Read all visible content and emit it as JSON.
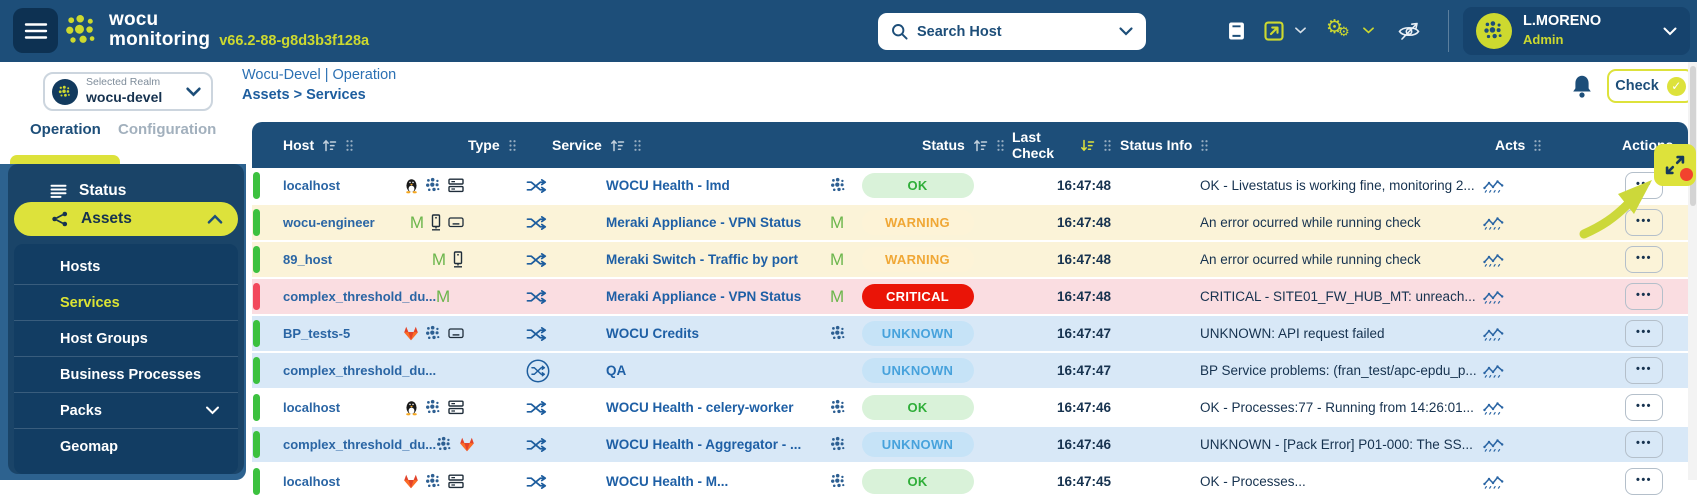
{
  "colors": {
    "navbar_navy": "#1d4e79",
    "sidebar_panel_navy": "#1a4468",
    "submenu_navy": "#123d63",
    "brand_lime": "#dde23b",
    "logo_lime": "#cdd92f",
    "link_blue": "#2a65a4",
    "ok_green": "#2fae39",
    "warning_orange": "#f0a735",
    "critical_red": "#ea1407",
    "unknown_blue": "#47a2dc",
    "row_cream": "#fbf3d8",
    "row_pink": "#fadde1",
    "row_blue": "#d8e8f7",
    "bar_green": "#3cc13f",
    "bar_red": "#f2485c"
  },
  "navbar": {
    "brand_line1": "wocu",
    "brand_line2": "monitoring",
    "version": "v66.2-88-g8d3b3f128a",
    "search_placeholder": "Search Host",
    "user_name": "L.MORENO",
    "user_role": "Admin"
  },
  "realm_selector": {
    "label": "Selected Realm",
    "value": "wocu-devel"
  },
  "breadcrumb": {
    "line1": "Wocu-Devel | Operation",
    "line2": "Assets > Services"
  },
  "header_actions": {
    "check_label": "Check"
  },
  "sidebar": {
    "tabs": [
      {
        "label": "Operation",
        "active": true
      },
      {
        "label": "Configuration",
        "active": false
      }
    ],
    "status_label": "Status",
    "assets_label": "Assets",
    "assets_submenu": [
      {
        "label": "Hosts"
      },
      {
        "label": "Services",
        "active": true
      },
      {
        "label": "Host Groups"
      },
      {
        "label": "Business Processes"
      },
      {
        "label": "Packs",
        "chevron": true
      },
      {
        "label": "Geomap"
      }
    ]
  },
  "table": {
    "columns": [
      {
        "label": "Host",
        "sort": true,
        "drag": true
      },
      {
        "label": "Type",
        "sort": false,
        "drag": true
      },
      {
        "label": "Service",
        "sort": true,
        "drag": true
      },
      {
        "label": "Status",
        "sort": true,
        "drag": true
      },
      {
        "label": "Last Check",
        "sort": true,
        "sort_active": "desc",
        "drag": true
      },
      {
        "label": "Status Info",
        "sort": false,
        "drag": true
      },
      {
        "label": "Acts",
        "sort": false,
        "drag": true
      },
      {
        "label": "Actions",
        "sort": false,
        "drag": false
      }
    ],
    "rows": [
      {
        "host": "localhost",
        "host_icons": [
          "linux",
          "wocu",
          "drives"
        ],
        "type_icon": "shuffle",
        "service": "WOCU Health - lmd",
        "service_icon": "wocu",
        "status": "OK",
        "status_class": "ok",
        "last_check": "16:47:48",
        "status_info": "OK - Livestatus is working fine, monitoring 2...",
        "bg": "white",
        "bar": "green"
      },
      {
        "host": "wocu-engineer",
        "host_icons": [
          "meraki",
          "tower",
          "disk"
        ],
        "type_icon": "shuffle",
        "service": "Meraki Appliance - VPN Status",
        "service_icon": "meraki",
        "status": "WARNING",
        "status_class": "warning",
        "last_check": "16:47:48",
        "status_info": "An error ocurred while running check",
        "bg": "cream",
        "bar": "green"
      },
      {
        "host": "89_host",
        "host_icons": [
          "meraki",
          "tower"
        ],
        "type_icon": "shuffle",
        "service": "Meraki Switch - Traffic by port",
        "service_icon": "meraki",
        "status": "WARNING",
        "status_class": "warning",
        "last_check": "16:47:48",
        "status_info": "An error ocurred while running check",
        "bg": "cream",
        "bar": "green"
      },
      {
        "host": "complex_threshold_du...",
        "host_icons": [
          "meraki"
        ],
        "type_icon": "shuffle",
        "service": "Meraki Appliance - VPN Status",
        "service_icon": "meraki",
        "status": "CRITICAL",
        "status_class": "critical",
        "last_check": "16:47:48",
        "status_info": "CRITICAL - SITE01_FW_HUB_MT: unreach...",
        "bg": "pink",
        "bar": "red"
      },
      {
        "host": "BP_tests-5",
        "host_icons": [
          "gitlab",
          "wocu",
          "disk"
        ],
        "type_icon": "shuffle",
        "service": "WOCU Credits",
        "service_icon": "wocu",
        "status": "UNKNOWN",
        "status_class": "unknown",
        "last_check": "16:47:47",
        "status_info": "UNKNOWN: API request failed",
        "bg": "blue",
        "bar": "green"
      },
      {
        "host": "complex_threshold_du...",
        "host_icons": [],
        "type_icon": "shuffle-circle",
        "service": "QA",
        "service_icon": null,
        "status": "UNKNOWN",
        "status_class": "unknown",
        "last_check": "16:47:47",
        "status_info": "BP Service problems: (fran_test/apc-epdu_p...",
        "bg": "blue",
        "bar": "green"
      },
      {
        "host": "localhost",
        "host_icons": [
          "linux",
          "wocu",
          "drives"
        ],
        "type_icon": "shuffle",
        "service": "WOCU Health - celery-worker",
        "service_icon": "wocu",
        "status": "OK",
        "status_class": "ok",
        "last_check": "16:47:46",
        "status_info": "OK - Processes:77 - Running from 14:26:01...",
        "bg": "white",
        "bar": "green"
      },
      {
        "host": "complex_threshold_du...",
        "host_icons": [
          "wocu",
          "gitlab"
        ],
        "type_icon": "shuffle",
        "service": "WOCU Health - Aggregator - ...",
        "service_icon": "wocu",
        "status": "UNKNOWN",
        "status_class": "unknown",
        "last_check": "16:47:46",
        "status_info": "UNKNOWN - [Pack Error] P01-000: The SS...",
        "bg": "blue",
        "bar": "green"
      },
      {
        "host": "localhost",
        "host_icons": [
          "gitlab",
          "wocu",
          "drives"
        ],
        "type_icon": "shuffle",
        "service": "WOCU Health - M...",
        "service_icon": "wocu",
        "status": "OK",
        "status_class": "ok",
        "last_check": "16:47:45",
        "status_info": "OK - Processes...",
        "bg": "white",
        "bar": "green",
        "partial": true
      }
    ]
  }
}
